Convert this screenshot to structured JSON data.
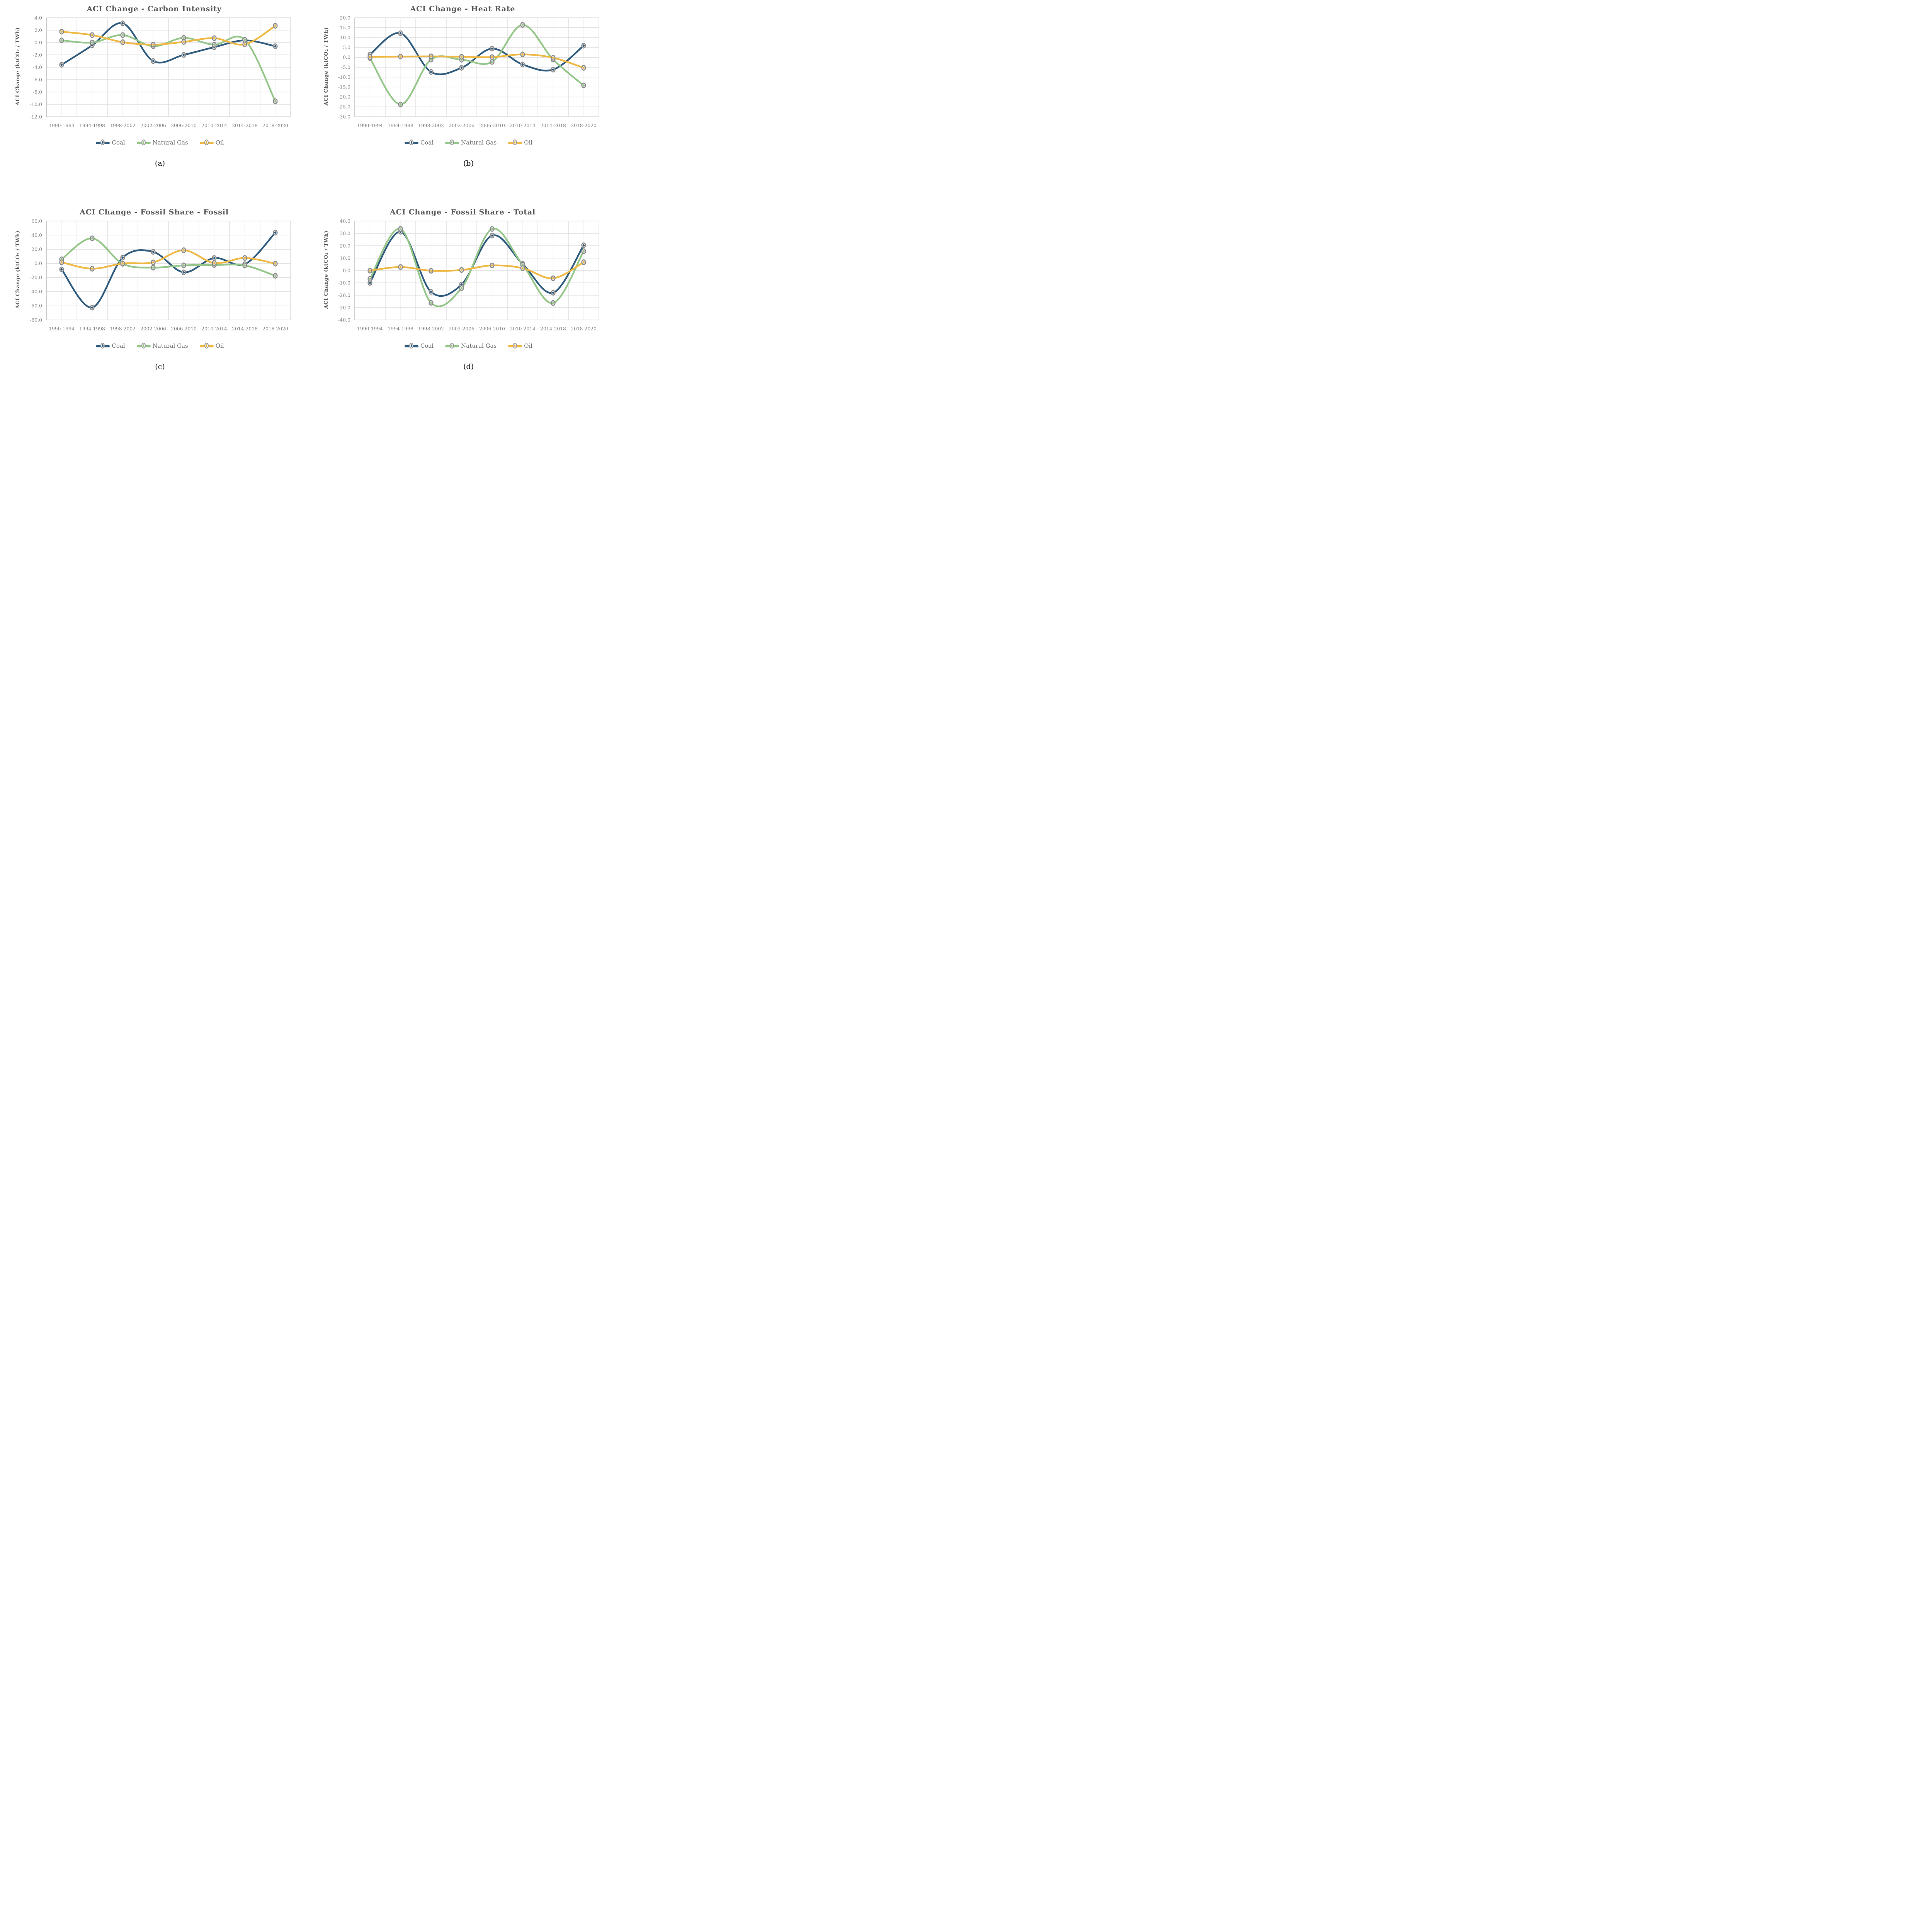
{
  "figure_background": "#ffffff",
  "style": {
    "grid_color": "#d9d9d9",
    "minor_grid_color": "#f2f2f2",
    "axis_line_color": "#bfbfbf",
    "tick_text_color": "#7f7f7f",
    "title_color": "#595959",
    "legend_text_color": "#6e6e6e",
    "marker_ring_color": "#8a8a8a",
    "marker_fill_color": "#dcdcdc",
    "caption_color": "#141414",
    "coal_color": "#2f5b7e",
    "natural_gas_color": "#95c689",
    "oil_color": "#eeb843"
  },
  "legend_labels": [
    "Coal",
    "Natural Gas",
    "Oil"
  ],
  "chart_data": [
    {
      "type": "line",
      "panel": "a",
      "caption": "(a)",
      "title": "ACI Change - Carbon Intensity",
      "ylabel": "ACI Change (ktCO₂ / TWh)",
      "xlabel": "",
      "ylim": [
        -12.0,
        4.0
      ],
      "ytick_step": 2.0,
      "grid": true,
      "legend_position": "bottom",
      "smooth": true,
      "categories": [
        "1990-1994",
        "1994-1998",
        "1998-2002",
        "2002-2006",
        "2006-2010",
        "2010-2014",
        "2014-2018",
        "2018-2020"
      ],
      "series": [
        {
          "name": "Coal",
          "color": "#2f5b7e",
          "values": [
            -3.6,
            -0.45,
            3.1,
            -3.0,
            -2.0,
            -0.75,
            0.35,
            -0.6
          ]
        },
        {
          "name": "Natural Gas",
          "color": "#95c689",
          "values": [
            0.35,
            0.0,
            1.2,
            -0.6,
            0.75,
            -0.35,
            0.45,
            -9.5
          ]
        },
        {
          "name": "Oil",
          "color": "#eeb843",
          "values": [
            1.75,
            1.2,
            0.05,
            -0.35,
            0.1,
            0.7,
            -0.3,
            2.7
          ]
        }
      ]
    },
    {
      "type": "line",
      "panel": "b",
      "caption": "(b)",
      "title": "ACI Change - Heat Rate",
      "ylabel": "ACI Change (ktCO₂ / TWh)",
      "xlabel": "",
      "ylim": [
        -30.0,
        20.0
      ],
      "ytick_step": 5.0,
      "grid": true,
      "legend_position": "bottom",
      "smooth": true,
      "categories": [
        "1990-1994",
        "1994-1998",
        "1998-2002",
        "2002-2006",
        "2006-2010",
        "2010-2014",
        "2014-2018",
        "2018-2020"
      ],
      "series": [
        {
          "name": "Coal",
          "color": "#2f5b7e",
          "values": [
            1.4,
            12.2,
            -7.4,
            -5.3,
            4.4,
            -3.6,
            -6.2,
            5.9
          ]
        },
        {
          "name": "Natural Gas",
          "color": "#95c689",
          "values": [
            -0.4,
            -23.8,
            -1.1,
            -1.2,
            -2.3,
            16.4,
            -1.1,
            -14.2
          ]
        },
        {
          "name": "Oil",
          "color": "#eeb843",
          "values": [
            0.2,
            0.4,
            0.5,
            0.3,
            0.1,
            1.5,
            -0.2,
            -5.3
          ]
        }
      ]
    },
    {
      "type": "line",
      "panel": "c",
      "caption": "(c)",
      "title": "ACI Change - Fossil Share - Fossil",
      "ylabel": "ACI Change (ktCO₂ / TWh)",
      "xlabel": "",
      "ylim": [
        -80.0,
        60.0
      ],
      "ytick_step": 20.0,
      "grid": true,
      "legend_position": "bottom",
      "smooth": true,
      "categories": [
        "1990-1994",
        "1994-1998",
        "1998-2002",
        "2002-2006",
        "2006-2010",
        "2010-2014",
        "2014-2018",
        "2018-2020"
      ],
      "series": [
        {
          "name": "Coal",
          "color": "#2f5b7e",
          "values": [
            -8.5,
            -62.5,
            8.2,
            16.4,
            -12.6,
            7.6,
            -1.0,
            43.5
          ]
        },
        {
          "name": "Natural Gas",
          "color": "#95c689",
          "values": [
            5.8,
            35.5,
            -0.5,
            -5.9,
            -2.8,
            -2.2,
            -2.9,
            -17.5
          ]
        },
        {
          "name": "Oil",
          "color": "#eeb843",
          "values": [
            1.6,
            -7.5,
            -0.1,
            1.5,
            18.7,
            0.5,
            7.7,
            -0.3
          ]
        }
      ]
    },
    {
      "type": "line",
      "panel": "d",
      "caption": "(d)",
      "title": "ACI Change - Fossil Share - Total",
      "ylabel": "ACI Change (ktCO₂ / TWh)",
      "xlabel": "",
      "ylim": [
        -40.0,
        40.0
      ],
      "ytick_step": 10.0,
      "grid": true,
      "legend_position": "bottom",
      "smooth": true,
      "categories": [
        "1990-1994",
        "1994-1998",
        "1998-2002",
        "2002-2006",
        "2006-2010",
        "2010-2014",
        "2014-2018",
        "2018-2020"
      ],
      "series": [
        {
          "name": "Coal",
          "color": "#2f5b7e",
          "values": [
            -10.0,
            31.3,
            -17.3,
            -11.4,
            28.3,
            5.3,
            -18.0,
            20.4
          ]
        },
        {
          "name": "Natural Gas",
          "color": "#95c689",
          "values": [
            -6.7,
            33.6,
            -26.1,
            -14.2,
            33.6,
            4.7,
            -26.3,
            15.6
          ]
        },
        {
          "name": "Oil",
          "color": "#eeb843",
          "values": [
            -0.1,
            2.8,
            -0.2,
            0.4,
            4.1,
            1.9,
            -6.3,
            6.7
          ]
        }
      ]
    }
  ]
}
